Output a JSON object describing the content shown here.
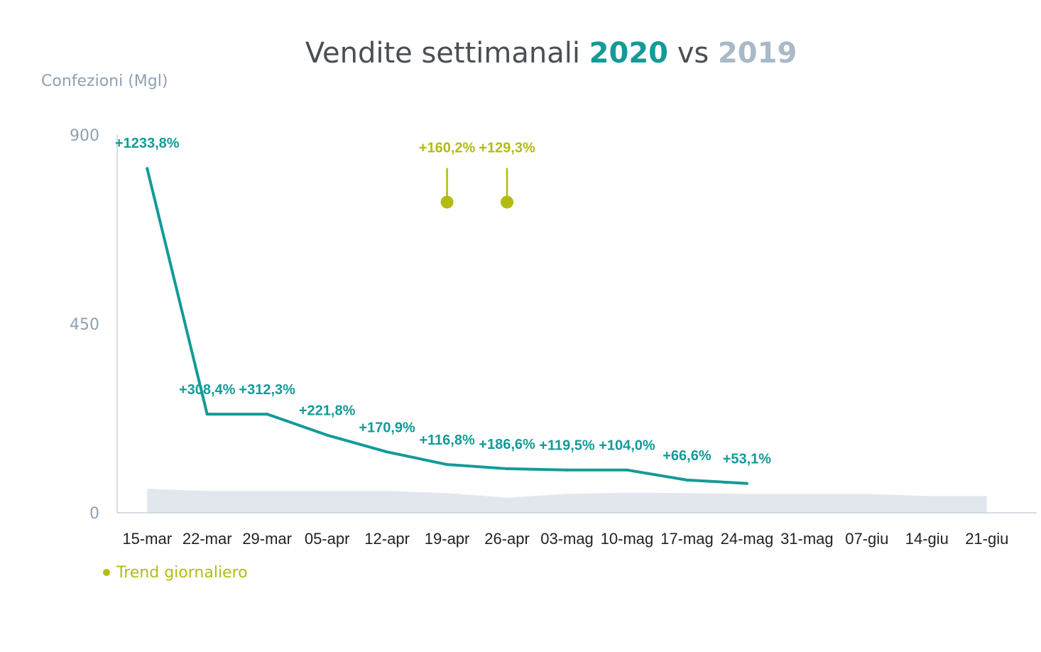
{
  "chart_data": {
    "type": "line",
    "title": {
      "prefix": "Vendite settimanali ",
      "year_a": "2020",
      "middle": " vs ",
      "year_b": "2019"
    },
    "ylabel": "Confezioni (Mgl)",
    "xlabel": "",
    "ylim": [
      0,
      900
    ],
    "yticks": [
      0,
      450,
      900
    ],
    "grid": false,
    "categories": [
      "15-mar",
      "22-mar",
      "29-mar",
      "05-apr",
      "12-apr",
      "19-apr",
      "26-apr",
      "03-mag",
      "10-mag",
      "17-mag",
      "24-mag",
      "31-mag",
      "07-giu",
      "14-giu",
      "21-giu"
    ],
    "series": [
      {
        "name": "2020",
        "kind": "line",
        "color": "#149a98",
        "values": [
          820,
          235,
          235,
          185,
          145,
          115,
          105,
          102,
          102,
          78,
          70,
          null,
          null,
          null,
          null
        ],
        "labels": [
          "+1233,8%",
          "+308,4%",
          "+312,3%",
          "+221,8%",
          "+170,9%",
          "+116,8%",
          "+186,6%",
          "+119,5%",
          "+104,0%",
          "+66,6%",
          "+53,1%",
          null,
          null,
          null,
          null
        ]
      },
      {
        "name": "2019",
        "kind": "area",
        "color": "#e2e7ee",
        "values": [
          57,
          52,
          52,
          52,
          52,
          47,
          36,
          45,
          48,
          47,
          45,
          45,
          45,
          40,
          40
        ]
      },
      {
        "name": "Trend giornaliero",
        "kind": "marker",
        "color": "#b2bc12",
        "values": [
          null,
          null,
          null,
          null,
          null,
          740,
          740,
          null,
          null,
          null,
          null,
          null,
          null,
          null,
          null
        ],
        "labels": [
          null,
          null,
          null,
          null,
          null,
          "+160,2%",
          "+129,3%",
          null,
          null,
          null,
          null,
          null,
          null,
          null,
          null
        ]
      }
    ],
    "legend": {
      "position": "bottom-left",
      "items": [
        {
          "label": "Trend giornaliero",
          "color": "#b2bc12"
        }
      ]
    }
  }
}
